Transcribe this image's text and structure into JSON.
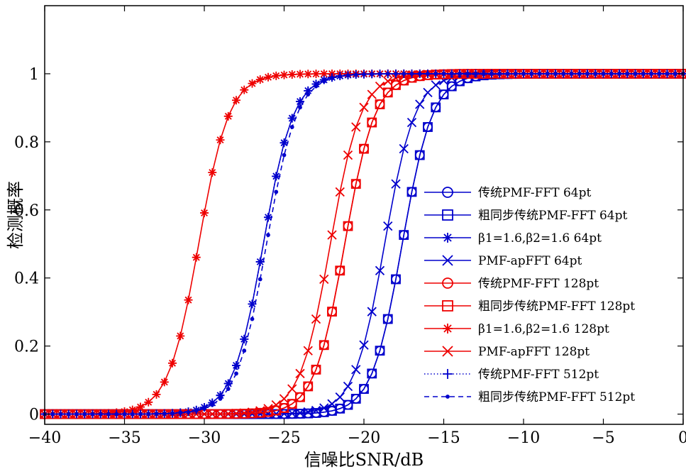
{
  "chart_data": {
    "type": "line",
    "xlabel": "信噪比SNR/dB",
    "ylabel": "检测概率",
    "xlim": [
      -40,
      0
    ],
    "ylim": [
      -0.03,
      1.2
    ],
    "x_ticks": [
      -40,
      -35,
      -30,
      -25,
      -20,
      -15,
      -10,
      -5,
      0
    ],
    "x_tick_labels": [
      "−40",
      "−35",
      "−30",
      "−25",
      "−20",
      "−15",
      "−10",
      "−5",
      "0"
    ],
    "y_ticks": [
      0,
      0.2,
      0.4,
      0.6,
      0.8,
      1
    ],
    "y_tick_labels": [
      "0",
      "0.2",
      "0.4",
      "0.6",
      "0.8",
      "1"
    ],
    "grid": false,
    "legend_position": "right",
    "x_step": 0.5,
    "series": [
      {
        "name": "传统PMF-FFT 64pt",
        "color": "#0000cc",
        "marker": "circle",
        "line": "solid",
        "midpoint": -17.6,
        "width": 0.95
      },
      {
        "name": "粗同步传统PMF-FFT 64pt",
        "color": "#0000cc",
        "marker": "square",
        "line": "solid",
        "midpoint": -17.6,
        "width": 0.95
      },
      {
        "name": "β1=1.6,β2=1.6 64pt",
        "color": "#0000cc",
        "marker": "asterisk",
        "line": "solid",
        "midpoint": -26.3,
        "width": 0.95
      },
      {
        "name": "PMF-apFFT 64pt",
        "color": "#0000cc",
        "marker": "x",
        "line": "solid",
        "midpoint": -18.7,
        "width": 0.95
      },
      {
        "name": "传统PMF-FFT 128pt",
        "color": "#ee0000",
        "marker": "circle",
        "line": "solid",
        "midpoint": -21.2,
        "width": 0.95
      },
      {
        "name": "粗同步传统PMF-FFT 128pt",
        "color": "#ee0000",
        "marker": "square",
        "line": "solid",
        "midpoint": -21.2,
        "width": 0.95
      },
      {
        "name": "β1=1.6,β2=1.6 128pt",
        "color": "#ee0000",
        "marker": "asterisk",
        "line": "solid",
        "midpoint": -30.35,
        "width": 0.95
      },
      {
        "name": "PMF-apFFT 128pt",
        "color": "#ee0000",
        "marker": "x",
        "line": "solid",
        "midpoint": -22.1,
        "width": 0.95
      },
      {
        "name": "传统PMF-FFT 512pt",
        "color": "#0000cc",
        "marker": "plus",
        "line": "dotted",
        "midpoint": -26.3,
        "width": 0.95
      },
      {
        "name": "粗同步传统PMF-FFT 512pt",
        "color": "#0000cc",
        "marker": "dot",
        "line": "dashed",
        "midpoint": -26.1,
        "width": 0.95
      }
    ]
  }
}
